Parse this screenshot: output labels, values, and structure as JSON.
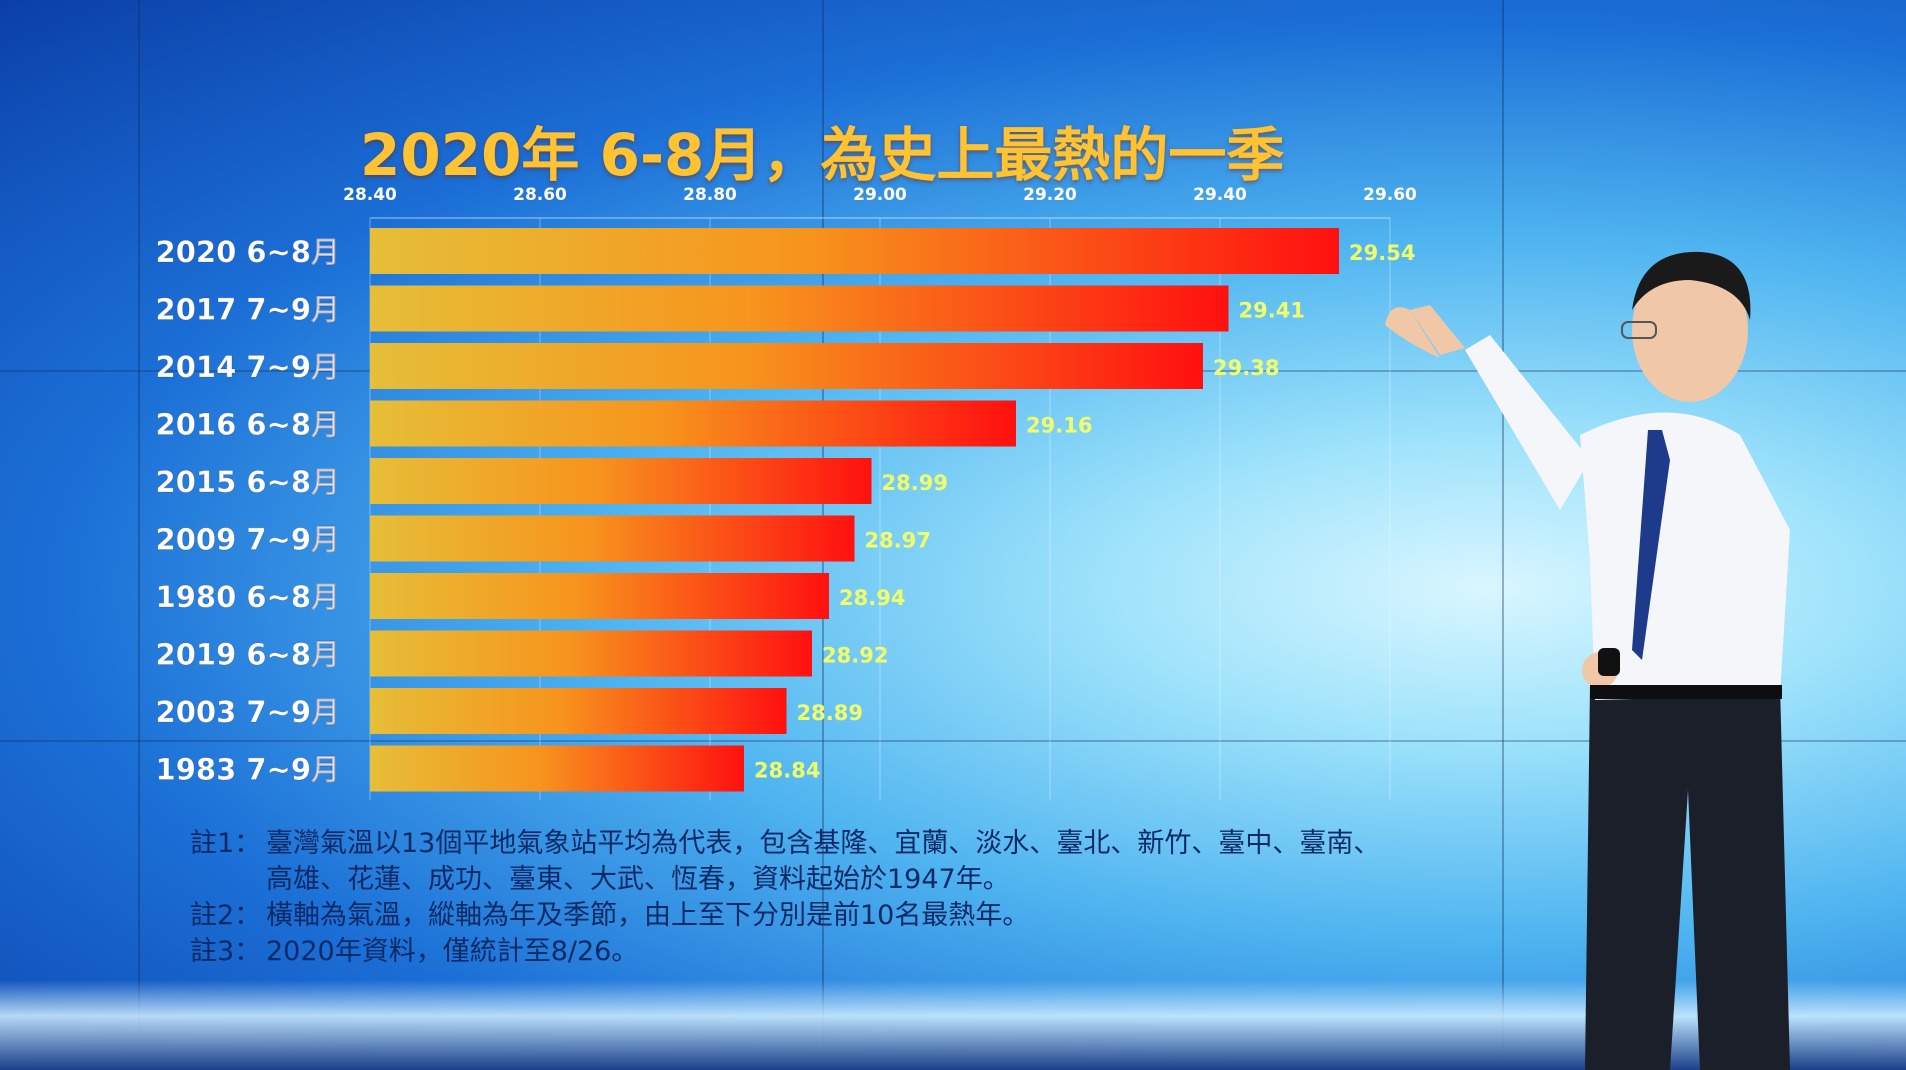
{
  "title": "2020年 6-8月，為史上最熱的一季",
  "colors": {
    "bar_start": "#e6be38",
    "bar_end": "#ff1010",
    "tick": "#ffffff",
    "value_label": "#f0ff6a"
  },
  "chart_data": {
    "type": "bar",
    "orientation": "horizontal",
    "title": "2020年 6-8月，為史上最熱的一季",
    "xlim": [
      28.4,
      29.6
    ],
    "x_ticks": [
      "28.40",
      "28.60",
      "28.80",
      "29.00",
      "29.20",
      "29.40",
      "29.60"
    ],
    "categories": [
      "2020 6~8月",
      "2017 7~9月",
      "2014 7~9月",
      "2016 6~8月",
      "2015 6~8月",
      "2009 7~9月",
      "1980 6~8月",
      "2019 6~8月",
      "2003 7~9月",
      "1983 7~9月"
    ],
    "values": [
      29.54,
      29.41,
      29.38,
      29.16,
      28.99,
      28.97,
      28.94,
      28.92,
      28.89,
      28.84
    ],
    "value_labels": [
      "29.54",
      "29.41",
      "29.38",
      "29.16",
      "28.99",
      "28.97",
      "28.94",
      "28.92",
      "28.89",
      "28.84"
    ],
    "grid": true,
    "legend": "none"
  },
  "notes": [
    {
      "label": "註1：",
      "text": "臺灣氣溫以13個平地氣象站平均為代表，包含基隆、宜蘭、淡水、臺北、新竹、臺中、臺南、"
    },
    {
      "label": "",
      "text": "高雄、花蓮、成功、臺東、大武、恆春，資料起始於1947年。"
    },
    {
      "label": "註2：",
      "text": "橫軸為氣溫，縱軸為年及季節，由上至下分別是前10名最熱年。"
    },
    {
      "label": "註3：",
      "text": "2020年資料，僅統計至8/26。"
    }
  ]
}
